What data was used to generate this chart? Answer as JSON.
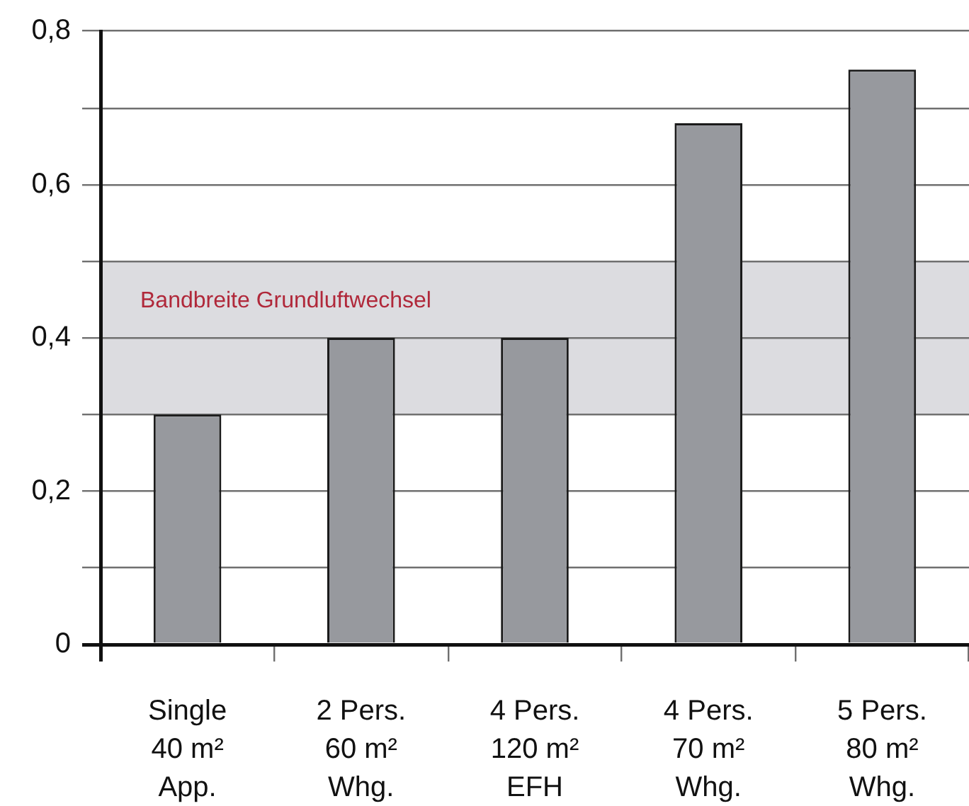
{
  "chart_data": {
    "type": "bar",
    "categories": [
      "Single\n40 m²\nApp.",
      "2 Pers.\n60 m²\nWhg.",
      "4 Pers.\n120 m²\nEFH",
      "4 Pers.\n70 m²\nWhg.",
      "5 Pers.\n80 m²\nWhg."
    ],
    "series": [
      {
        "color": "#97999e",
        "values": [
          0.3,
          0.4,
          0.4,
          0.68,
          0.75
        ]
      }
    ],
    "ylim": [
      0,
      0.8
    ],
    "yticks": [
      0,
      {
        "value": 0.1,
        "label": null
      },
      {
        "value": 0.2,
        "label": "0,2"
      },
      {
        "value": 0.3,
        "label": null
      },
      {
        "value": 0.4,
        "label": "0,4"
      },
      {
        "value": 0.5,
        "label": null
      },
      {
        "value": 0.6,
        "label": "0,6"
      },
      {
        "value": 0.7,
        "label": null
      },
      {
        "value": 0.8,
        "label": "0,8"
      }
    ],
    "bands": [
      {
        "axis": "y",
        "from": 0.3,
        "to": 0.5,
        "label": "Bandbreite Grundluftwechsel",
        "color": "#dcdce0"
      }
    ],
    "grid": "y"
  }
}
